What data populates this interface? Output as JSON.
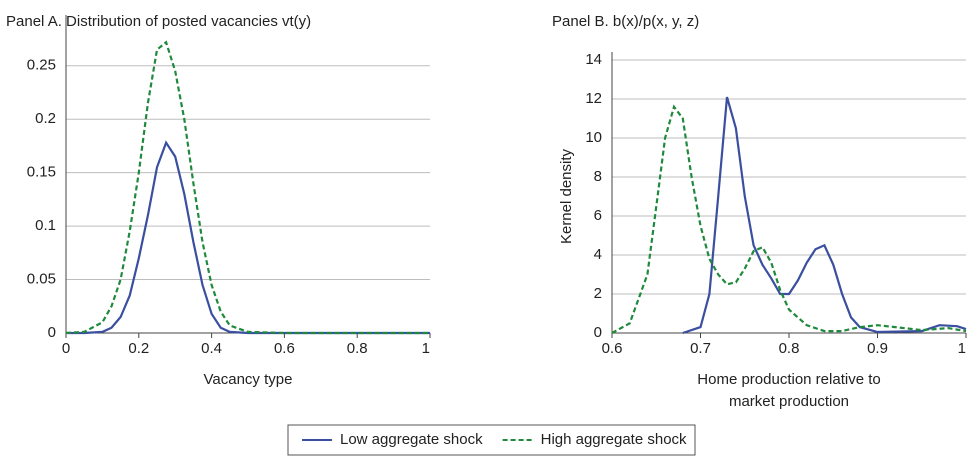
{
  "chart_data": [
    {
      "type": "line",
      "title": "Panel A. Distribution of posted vacancies vt(y)",
      "xlabel": [
        "Vacancy type"
      ],
      "x": [
        0,
        0.05,
        0.1,
        0.125,
        0.15,
        0.175,
        0.2,
        0.225,
        0.25,
        0.275,
        0.3,
        0.325,
        0.35,
        0.375,
        0.4,
        0.425,
        0.45,
        0.5,
        0.6,
        0.8,
        1
      ],
      "series": [
        {
          "name": "Low aggregate shock",
          "color": "#3a4fa0",
          "dash": false,
          "values": [
            0,
            0,
            0.001,
            0.005,
            0.015,
            0.035,
            0.07,
            0.11,
            0.155,
            0.178,
            0.165,
            0.13,
            0.085,
            0.045,
            0.018,
            0.005,
            0.001,
            0,
            0,
            0,
            0
          ]
        },
        {
          "name": "High aggregate shock",
          "color": "#1f8a3c",
          "dash": true,
          "values": [
            0,
            0.001,
            0.01,
            0.025,
            0.05,
            0.095,
            0.15,
            0.215,
            0.265,
            0.272,
            0.245,
            0.2,
            0.14,
            0.085,
            0.045,
            0.02,
            0.007,
            0.001,
            0,
            0,
            0
          ]
        }
      ],
      "xlim": [
        0,
        1
      ],
      "xticks": [
        0,
        0.2,
        0.4,
        0.6,
        0.8,
        1
      ],
      "ylim": [
        0,
        0.29
      ],
      "yticks": [
        0,
        0.05,
        0.1,
        0.15,
        0.2,
        0.25
      ],
      "grid": true
    },
    {
      "type": "line",
      "title": "Panel B. b(x)/p(x, y, z)",
      "xlabel": [
        "Home production relative to",
        "market production"
      ],
      "ylabel": "Kernel density",
      "series": [
        {
          "color": "#3a4fa0",
          "dash": false,
          "x": [
            0.68,
            0.7,
            0.71,
            0.72,
            0.73,
            0.74,
            0.75,
            0.76,
            0.77,
            0.78,
            0.79,
            0.8,
            0.81,
            0.82,
            0.83,
            0.84,
            0.85,
            0.86,
            0.87,
            0.88,
            0.9,
            0.95,
            0.97,
            0.99,
            1
          ],
          "values": [
            0,
            0.3,
            2,
            7,
            12.1,
            10.5,
            7,
            4.5,
            3.5,
            2.8,
            2,
            2,
            2.7,
            3.6,
            4.3,
            4.5,
            3.5,
            2,
            0.8,
            0.3,
            0.05,
            0.1,
            0.4,
            0.35,
            0.2
          ]
        },
        {
          "color": "#1f8a3c",
          "dash": true,
          "x": [
            0.6,
            0.62,
            0.64,
            0.65,
            0.66,
            0.67,
            0.68,
            0.69,
            0.7,
            0.71,
            0.72,
            0.73,
            0.74,
            0.75,
            0.76,
            0.77,
            0.78,
            0.79,
            0.8,
            0.82,
            0.84,
            0.86,
            0.88,
            0.9,
            0.92,
            0.95,
            0.98,
            1
          ],
          "values": [
            0,
            0.5,
            3,
            6.5,
            10,
            11.6,
            11,
            8,
            5.5,
            3.8,
            3,
            2.5,
            2.6,
            3.3,
            4.2,
            4.4,
            3.6,
            2.2,
            1.2,
            0.4,
            0.1,
            0.1,
            0.3,
            0.4,
            0.3,
            0.15,
            0.25,
            0.1
          ]
        }
      ],
      "xlim": [
        0.6,
        1
      ],
      "xticks": [
        0.6,
        0.7,
        0.8,
        0.9,
        1
      ],
      "ylim": [
        0,
        14
      ],
      "yticks": [
        0,
        2,
        4,
        6,
        8,
        10,
        12,
        14
      ],
      "grid": true
    }
  ]
}
